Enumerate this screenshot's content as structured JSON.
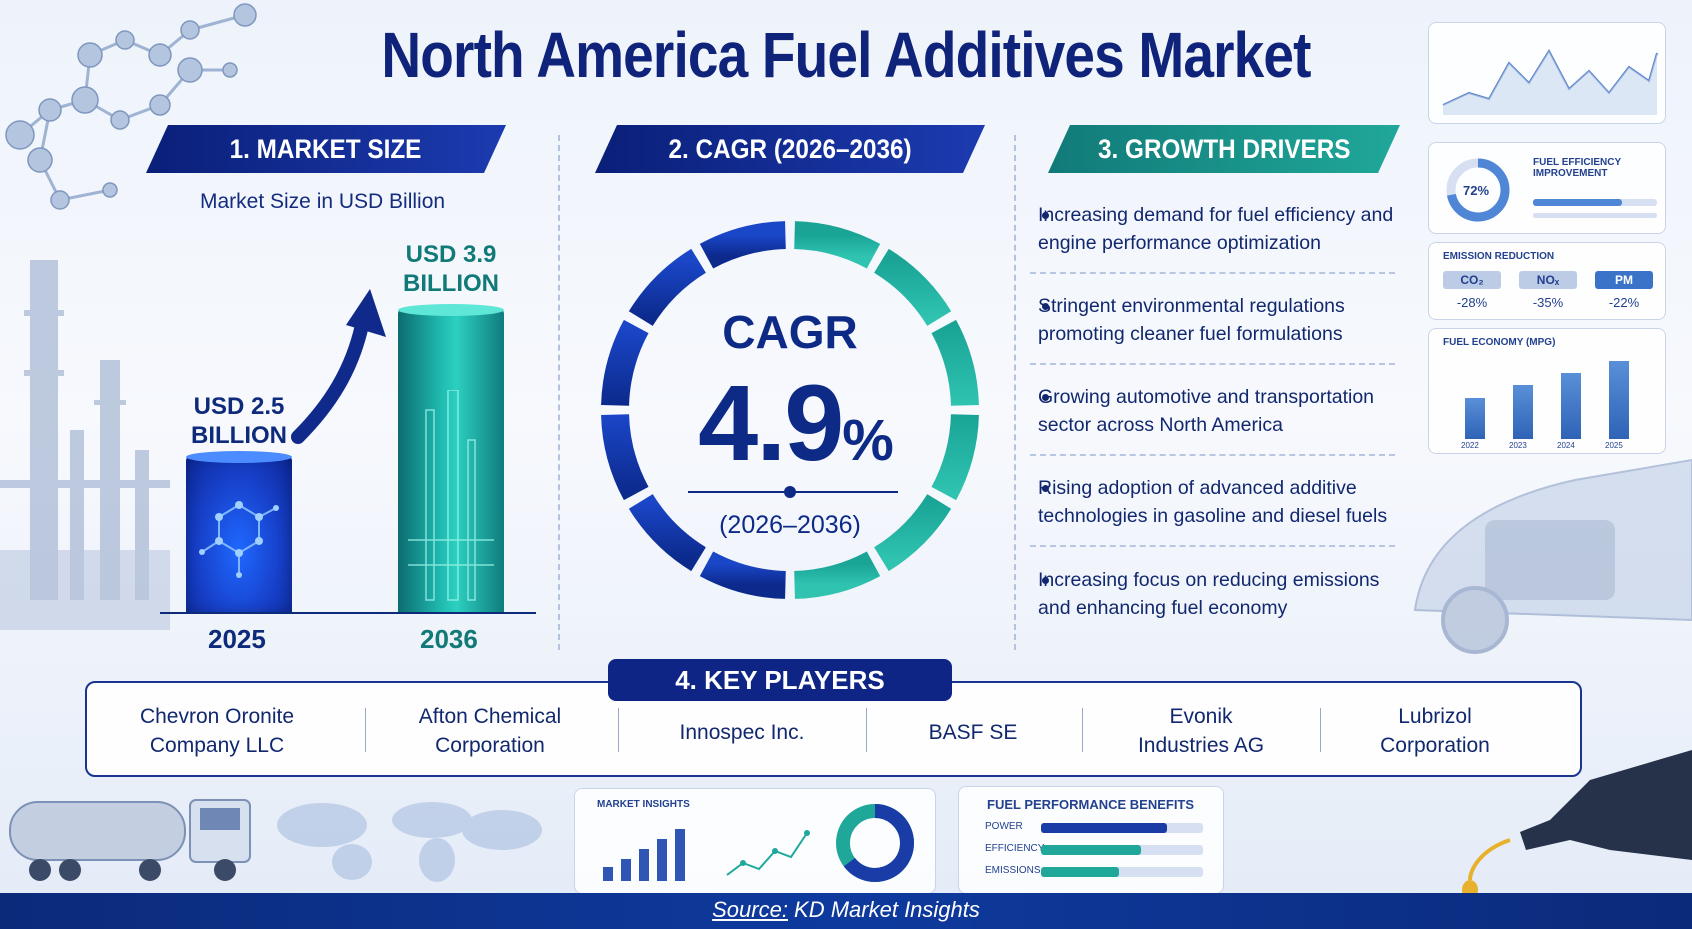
{
  "title": "North America Fuel Additives Market",
  "sections": {
    "market_size": {
      "banner": "1. MARKET SIZE",
      "subtitle": "Market Size in USD Billion",
      "bars": [
        {
          "year": "2025",
          "label_line1": "USD 2.5",
          "label_line2": "BILLION",
          "value": 2.5
        },
        {
          "year": "2036",
          "label_line1": "USD 3.9",
          "label_line2": "BILLION",
          "value": 3.9
        }
      ]
    },
    "cagr": {
      "banner": "2. CAGR (2026–2036)",
      "word": "CAGR",
      "value": "4.9",
      "unit": "%",
      "range": "(2026–2036)"
    },
    "drivers": {
      "banner": "3. GROWTH DRIVERS",
      "items": [
        [
          "Increasing demand for fuel efficiency and",
          "engine performance optimization"
        ],
        [
          "Stringent environmental regulations",
          "promoting cleaner fuel formulations"
        ],
        [
          "Growing automotive and transportation",
          "sector across North America"
        ],
        [
          "Rising adoption of advanced additive",
          "technologies in gasoline and diesel fuels"
        ],
        [
          "Increasing focus on reducing emissions",
          "and enhancing fuel economy"
        ]
      ]
    },
    "key_players": {
      "banner": "4. KEY PLAYERS",
      "players": [
        [
          "Chevron Oronite",
          "Company LLC"
        ],
        [
          "Afton Chemical",
          "Corporation"
        ],
        [
          "Innospec Inc.",
          ""
        ],
        [
          "BASF SE",
          ""
        ],
        [
          "Evonik",
          "Industries AG"
        ],
        [
          "Lubrizol",
          "Corporation"
        ]
      ]
    }
  },
  "side_panels": {
    "efficiency": {
      "title_line1": "FUEL EFFICIENCY",
      "title_line2": "IMPROVEMENT",
      "percent": "72%",
      "level": 0.72
    },
    "emission": {
      "title": "EMISSION REDUCTION",
      "items": [
        {
          "label": "CO₂",
          "value": "-28%"
        },
        {
          "label": "NOₓ",
          "value": "-35%"
        },
        {
          "label": "PM",
          "value": "-22%"
        }
      ]
    },
    "economy": {
      "title": "FUEL ECONOMY (MPG)",
      "years": [
        "2022",
        "2023",
        "2024",
        "2025"
      ],
      "levels": [
        0.5,
        0.66,
        0.8,
        0.95
      ]
    }
  },
  "bottom_panels": {
    "insights": {
      "title": "MARKET INSIGHTS"
    },
    "benefits": {
      "title": "FUEL PERFORMANCE BENEFITS",
      "rows": [
        {
          "label": "POWER",
          "level": 0.78
        },
        {
          "label": "EFFICIENCY",
          "level": 0.62
        },
        {
          "label": "EMISSIONS",
          "level": 0.48
        }
      ]
    }
  },
  "source": {
    "label": "Source:",
    "text": " KD Market Insights"
  },
  "colors": {
    "navy": "#0e2a7a",
    "blue": "#1740c9",
    "teal": "#1fa89a",
    "bar_dark": "#0b2592"
  }
}
